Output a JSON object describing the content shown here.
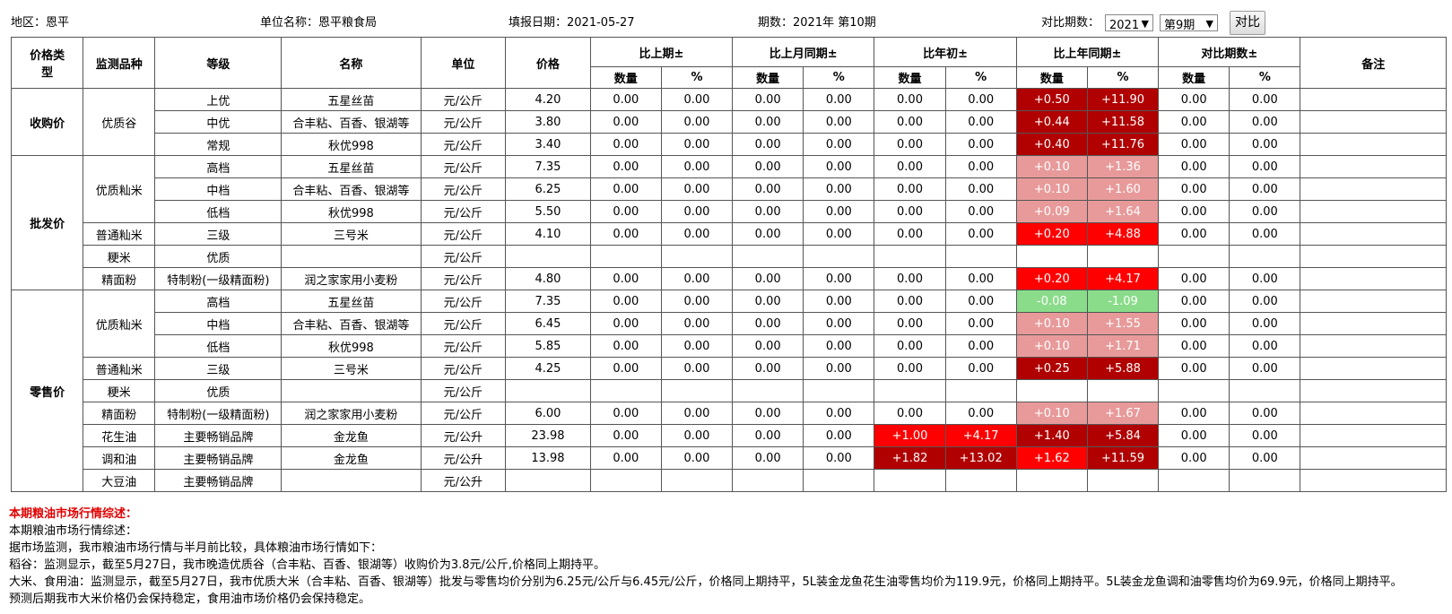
{
  "header": {
    "region": "地区：恩平",
    "unit": "单位名称：恩平粮食局",
    "date": "填报日期：2021-05-27",
    "period": "期数：2021年 第10期",
    "compare_label": "对比期数：",
    "year_select": "2021",
    "period_select": "第9期",
    "compare_button": "对比"
  },
  "table": {
    "headers": {
      "price_type": "价格类型",
      "variety": "监测品种",
      "grade": "等级",
      "name": "名称",
      "unit": "单位",
      "price": "价格",
      "groups": [
        "比上期±",
        "比上月同期±",
        "比年初±",
        "比上年同期±",
        "对比期数±"
      ],
      "sub_qty": "数量",
      "sub_pct": "%",
      "remark": "备注"
    },
    "types": {
      "purchase": "收购价",
      "wholesale": "批发价",
      "retail": "零售价"
    },
    "rows": [
      {
        "variety": "优质谷",
        "grade": "上优",
        "name": "五星丝苗",
        "unit": "元/公斤",
        "price": "4.20",
        "v": [
          "0.00",
          "0.00",
          "0.00",
          "0.00",
          "0.00",
          "0.00",
          "+0.50",
          "+11.90",
          "0.00",
          "0.00"
        ],
        "c": [
          "",
          "",
          "",
          "",
          "",
          "",
          "dk",
          "dk",
          "",
          ""
        ]
      },
      {
        "variety": "",
        "grade": "中优",
        "name": "合丰粘、百香、银湖等",
        "unit": "元/公斤",
        "price": "3.80",
        "v": [
          "0.00",
          "0.00",
          "0.00",
          "0.00",
          "0.00",
          "0.00",
          "+0.44",
          "+11.58",
          "0.00",
          "0.00"
        ],
        "c": [
          "",
          "",
          "",
          "",
          "",
          "",
          "dk",
          "dk",
          "",
          ""
        ]
      },
      {
        "variety": "",
        "grade": "常规",
        "name": "秋优998",
        "unit": "元/公斤",
        "price": "3.40",
        "v": [
          "0.00",
          "0.00",
          "0.00",
          "0.00",
          "0.00",
          "0.00",
          "+0.40",
          "+11.76",
          "0.00",
          "0.00"
        ],
        "c": [
          "",
          "",
          "",
          "",
          "",
          "",
          "dk",
          "dk",
          "",
          ""
        ]
      },
      {
        "variety": "优质籼米",
        "grade": "高档",
        "name": "五星丝苗",
        "unit": "元/公斤",
        "price": "7.35",
        "v": [
          "0.00",
          "0.00",
          "0.00",
          "0.00",
          "0.00",
          "0.00",
          "+0.10",
          "+1.36",
          "0.00",
          "0.00"
        ],
        "c": [
          "",
          "",
          "",
          "",
          "",
          "",
          "lt",
          "lt",
          "",
          ""
        ]
      },
      {
        "variety": "",
        "grade": "中档",
        "name": "合丰粘、百香、银湖等",
        "unit": "元/公斤",
        "price": "6.25",
        "v": [
          "0.00",
          "0.00",
          "0.00",
          "0.00",
          "0.00",
          "0.00",
          "+0.10",
          "+1.60",
          "0.00",
          "0.00"
        ],
        "c": [
          "",
          "",
          "",
          "",
          "",
          "",
          "lt",
          "lt",
          "",
          ""
        ]
      },
      {
        "variety": "",
        "grade": "低档",
        "name": "秋优998",
        "unit": "元/公斤",
        "price": "5.50",
        "v": [
          "0.00",
          "0.00",
          "0.00",
          "0.00",
          "0.00",
          "0.00",
          "+0.09",
          "+1.64",
          "0.00",
          "0.00"
        ],
        "c": [
          "",
          "",
          "",
          "",
          "",
          "",
          "lt",
          "lt",
          "",
          ""
        ]
      },
      {
        "variety": "普通籼米",
        "grade": "三级",
        "name": "三号米",
        "unit": "元/公斤",
        "price": "4.10",
        "v": [
          "0.00",
          "0.00",
          "0.00",
          "0.00",
          "0.00",
          "0.00",
          "+0.20",
          "+4.88",
          "0.00",
          "0.00"
        ],
        "c": [
          "",
          "",
          "",
          "",
          "",
          "",
          "md",
          "md",
          "",
          ""
        ]
      },
      {
        "variety": "粳米",
        "grade": "优质",
        "name": "",
        "unit": "元/公斤",
        "price": "",
        "v": [
          "",
          "",
          "",
          "",
          "",
          "",
          "",
          "",
          "",
          ""
        ],
        "c": [
          "",
          "",
          "",
          "",
          "",
          "",
          "",
          "",
          "",
          ""
        ]
      },
      {
        "variety": "精面粉",
        "grade": "特制粉(一级精面粉)",
        "name": "润之家家用小麦粉",
        "unit": "元/公斤",
        "price": "4.80",
        "v": [
          "0.00",
          "0.00",
          "0.00",
          "0.00",
          "0.00",
          "0.00",
          "+0.20",
          "+4.17",
          "0.00",
          "0.00"
        ],
        "c": [
          "",
          "",
          "",
          "",
          "",
          "",
          "md",
          "md",
          "",
          ""
        ]
      },
      {
        "variety": "优质籼米",
        "grade": "高档",
        "name": "五星丝苗",
        "unit": "元/公斤",
        "price": "7.35",
        "v": [
          "0.00",
          "0.00",
          "0.00",
          "0.00",
          "0.00",
          "0.00",
          "-0.08",
          "-1.09",
          "0.00",
          "0.00"
        ],
        "c": [
          "",
          "",
          "",
          "",
          "",
          "",
          "gr",
          "gr",
          "",
          ""
        ]
      },
      {
        "variety": "",
        "grade": "中档",
        "name": "合丰粘、百香、银湖等",
        "unit": "元/公斤",
        "price": "6.45",
        "v": [
          "0.00",
          "0.00",
          "0.00",
          "0.00",
          "0.00",
          "0.00",
          "+0.10",
          "+1.55",
          "0.00",
          "0.00"
        ],
        "c": [
          "",
          "",
          "",
          "",
          "",
          "",
          "lt",
          "lt",
          "",
          ""
        ]
      },
      {
        "variety": "",
        "grade": "低档",
        "name": "秋优998",
        "unit": "元/公斤",
        "price": "5.85",
        "v": [
          "0.00",
          "0.00",
          "0.00",
          "0.00",
          "0.00",
          "0.00",
          "+0.10",
          "+1.71",
          "0.00",
          "0.00"
        ],
        "c": [
          "",
          "",
          "",
          "",
          "",
          "",
          "lt",
          "lt",
          "",
          ""
        ]
      },
      {
        "variety": "普通籼米",
        "grade": "三级",
        "name": "三号米",
        "unit": "元/公斤",
        "price": "4.25",
        "v": [
          "0.00",
          "0.00",
          "0.00",
          "0.00",
          "0.00",
          "0.00",
          "+0.25",
          "+5.88",
          "0.00",
          "0.00"
        ],
        "c": [
          "",
          "",
          "",
          "",
          "",
          "",
          "dk",
          "dk",
          "",
          ""
        ]
      },
      {
        "variety": "粳米",
        "grade": "优质",
        "name": "",
        "unit": "元/公斤",
        "price": "",
        "v": [
          "",
          "",
          "",
          "",
          "",
          "",
          "",
          "",
          "",
          ""
        ],
        "c": [
          "",
          "",
          "",
          "",
          "",
          "",
          "",
          "",
          "",
          ""
        ]
      },
      {
        "variety": "精面粉",
        "grade": "特制粉(一级精面粉)",
        "name": "润之家家用小麦粉",
        "unit": "元/公斤",
        "price": "6.00",
        "v": [
          "0.00",
          "0.00",
          "0.00",
          "0.00",
          "0.00",
          "0.00",
          "+0.10",
          "+1.67",
          "0.00",
          "0.00"
        ],
        "c": [
          "",
          "",
          "",
          "",
          "",
          "",
          "lt",
          "lt",
          "",
          ""
        ]
      },
      {
        "variety": "花生油",
        "grade": "主要畅销品牌",
        "name": "金龙鱼",
        "unit": "元/公升",
        "price": "23.98",
        "v": [
          "0.00",
          "0.00",
          "0.00",
          "0.00",
          "+1.00",
          "+4.17",
          "+1.40",
          "+5.84",
          "0.00",
          "0.00"
        ],
        "c": [
          "",
          "",
          "",
          "",
          "md",
          "md",
          "dk",
          "dk",
          "",
          ""
        ]
      },
      {
        "variety": "调和油",
        "grade": "主要畅销品牌",
        "name": "金龙鱼",
        "unit": "元/公升",
        "price": "13.98",
        "v": [
          "0.00",
          "0.00",
          "0.00",
          "0.00",
          "+1.82",
          "+13.02",
          "+1.62",
          "+11.59",
          "0.00",
          "0.00"
        ],
        "c": [
          "",
          "",
          "",
          "",
          "dk",
          "dk",
          "md",
          "dk",
          "",
          ""
        ]
      },
      {
        "variety": "大豆油",
        "grade": "主要畅销品牌",
        "name": "",
        "unit": "元/公升",
        "price": "",
        "v": [
          "",
          "",
          "",
          "",
          "",
          "",
          "",
          "",
          "",
          ""
        ],
        "c": [
          "",
          "",
          "",
          "",
          "",
          "",
          "",
          "",
          "",
          ""
        ]
      }
    ]
  },
  "summary": {
    "title": "本期粮油市场行情综述：",
    "lines": [
      "本期粮油市场行情综述：",
      "据市场监测，我市粮油市场行情与半月前比较，具体粮油市场行情如下：",
      "稻谷：监测显示，截至5月27日，我市晚造优质谷（合丰粘、百香、银湖等）收购价为3.8元/公斤,价格同上期持平。",
      "大米、食用油：监测显示，截至5月27日，我市优质大米（合丰粘、百香、银湖等）批发与零售均价分别为6.25元/公斤与6.45元/公斤，价格同上期持平，5L装金龙鱼花生油零售均价为119.9元，价格同上期持平。5L装金龙鱼调和油零售均价为69.9元，价格同上期持平。",
      "预测后期我市大米价格仍会保持稳定，食用油市场价格仍会保持稳定。"
    ]
  }
}
